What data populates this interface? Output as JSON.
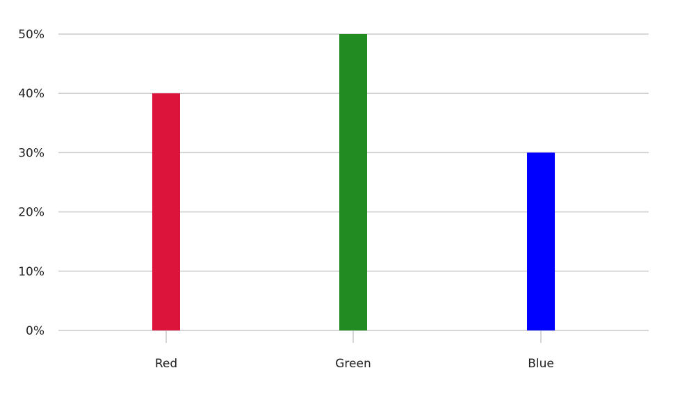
{
  "chart_data": {
    "type": "bar",
    "categories": [
      "Red",
      "Green",
      "Blue"
    ],
    "values": [
      40,
      50,
      30
    ],
    "colors": [
      "#DC143C",
      "#228B22",
      "#0000FF"
    ],
    "ylim": [
      0,
      50
    ],
    "yticks": [
      "0%",
      "10%",
      "20%",
      "30%",
      "40%",
      "50%"
    ],
    "ytick_values": [
      0,
      10,
      20,
      30,
      40,
      50
    ],
    "grid": true,
    "legend": false
  }
}
